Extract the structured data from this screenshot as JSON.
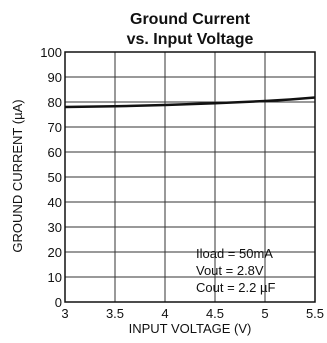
{
  "chart_data": {
    "type": "line",
    "title_line1": "Ground Current",
    "title_line2": "vs. Input Voltage",
    "xlabel": "INPUT VOLTAGE (V)",
    "ylabel": "GROUND CURRENT (µA)",
    "xlim": [
      3,
      5.5
    ],
    "ylim": [
      0,
      100
    ],
    "grid": true,
    "x_ticks": [
      "3",
      "3.5",
      "4",
      "4.5",
      "5",
      "5.5"
    ],
    "y_ticks": [
      "0",
      "10",
      "20",
      "30",
      "40",
      "50",
      "60",
      "70",
      "80",
      "90",
      "100"
    ],
    "series": [
      {
        "x": [
          3.0,
          3.5,
          4.0,
          4.5,
          5.0,
          5.25,
          5.5
        ],
        "y": [
          78.0,
          78.3,
          78.8,
          79.5,
          80.4,
          81.0,
          81.8
        ]
      }
    ],
    "annotations": [
      "Iload = 50mA",
      "Vout = 2.8V",
      "Cout = 2.2 µF"
    ],
    "colors": {
      "line": "#111111",
      "grid": "#333333",
      "frame": "#111111"
    }
  }
}
